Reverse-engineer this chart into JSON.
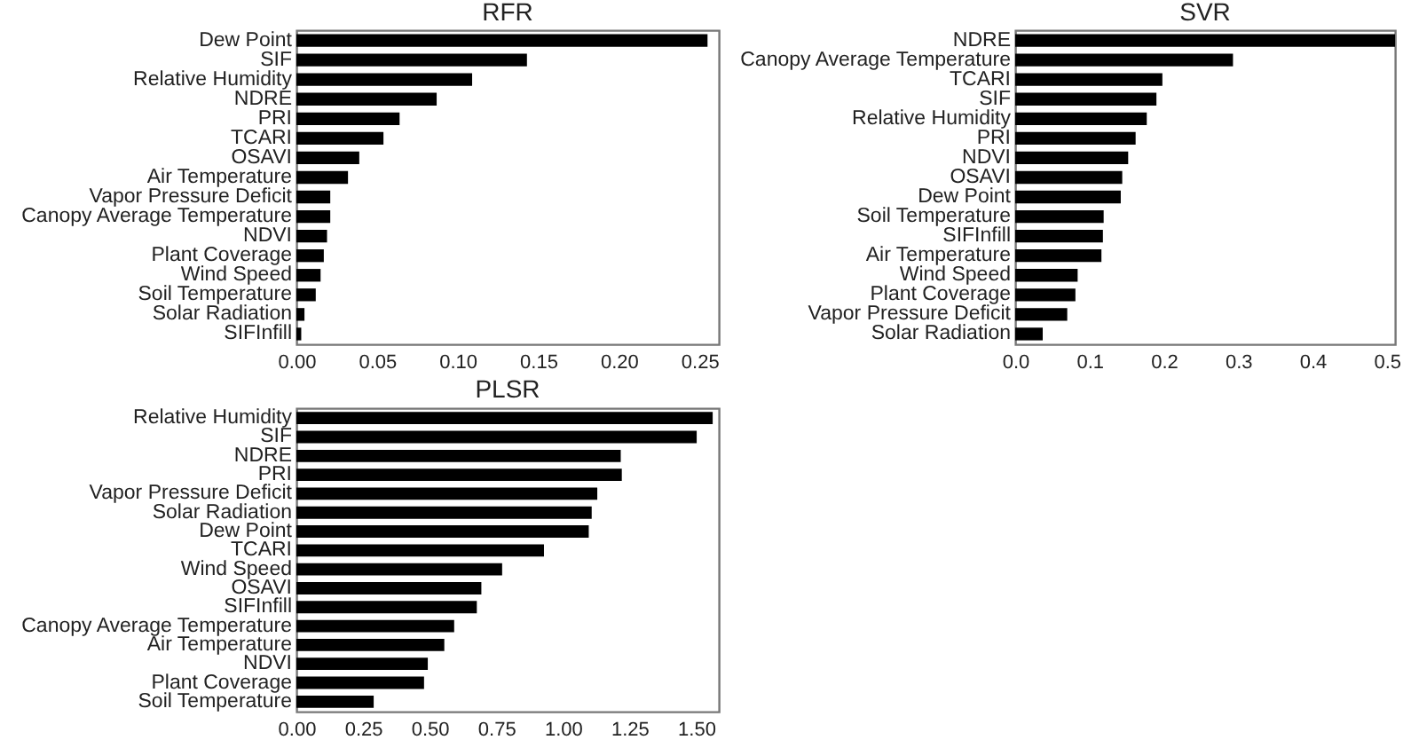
{
  "chart_data": [
    {
      "type": "bar",
      "orientation": "horizontal",
      "title": "RFR",
      "color": "#000000",
      "categories": [
        "Dew Point",
        "SIF",
        "Relative Humidity",
        "NDRE",
        "PRI",
        "TCARI",
        "OSAVI",
        "Air Temperature",
        "Vapor Pressure Deficit",
        "Canopy Average Temperature",
        "NDVI",
        "Plant Coverage",
        "Wind Speed",
        "Soil Temperature",
        "Solar Radiation",
        "SIFInfill"
      ],
      "values": [
        0.255,
        0.143,
        0.109,
        0.087,
        0.064,
        0.054,
        0.039,
        0.032,
        0.021,
        0.021,
        0.019,
        0.017,
        0.015,
        0.012,
        0.005,
        0.003
      ],
      "xlim": [
        0,
        0.262
      ],
      "xticks": [
        {
          "value": 0,
          "label": "0.00"
        },
        {
          "value": 0.05,
          "label": "0.05"
        },
        {
          "value": 0.1,
          "label": "0.10"
        },
        {
          "value": 0.15,
          "label": "0.15"
        },
        {
          "value": 0.2,
          "label": "0.20"
        },
        {
          "value": 0.25,
          "label": "0.25"
        }
      ]
    },
    {
      "type": "bar",
      "orientation": "horizontal",
      "title": "SVR",
      "color": "#000000",
      "categories": [
        "NDRE",
        "Canopy Average Temperature",
        "TCARI",
        "SIF",
        "Relative Humidity",
        "PRI",
        "NDVI",
        "OSAVI",
        "Dew Point",
        "Soil Temperature",
        "SIFInfill",
        "Air Temperature",
        "Wind Speed",
        "Plant Coverage",
        "Vapor Pressure Deficit",
        "Solar Radiation"
      ],
      "values": [
        0.511,
        0.293,
        0.198,
        0.19,
        0.177,
        0.162,
        0.152,
        0.144,
        0.142,
        0.119,
        0.118,
        0.116,
        0.084,
        0.081,
        0.07,
        0.037
      ],
      "xlim": [
        0,
        0.511
      ],
      "xticks": [
        {
          "value": 0,
          "label": "0.0"
        },
        {
          "value": 0.1,
          "label": "0.1"
        },
        {
          "value": 0.2,
          "label": "0.2"
        },
        {
          "value": 0.3,
          "label": "0.3"
        },
        {
          "value": 0.4,
          "label": "0.4"
        },
        {
          "value": 0.5,
          "label": "0.5"
        }
      ]
    },
    {
      "type": "bar",
      "orientation": "horizontal",
      "title": "PLSR",
      "color": "#000000",
      "categories": [
        "Relative Humidity",
        "SIF",
        "NDRE",
        "PRI",
        "Vapor Pressure Deficit",
        "Solar Radiation",
        "Dew Point",
        "TCARI",
        "Wind Speed",
        "OSAVI",
        "SIFInfill",
        "Canopy Average Temperature",
        "Air Temperature",
        "NDVI",
        "Plant Coverage",
        "Soil Temperature"
      ],
      "values": [
        1.562,
        1.502,
        1.217,
        1.221,
        1.129,
        1.108,
        1.097,
        0.929,
        0.772,
        0.694,
        0.677,
        0.592,
        0.555,
        0.493,
        0.479,
        0.29
      ],
      "xlim": [
        0,
        1.585
      ],
      "xticks": [
        {
          "value": 0,
          "label": "0.00"
        },
        {
          "value": 0.25,
          "label": "0.25"
        },
        {
          "value": 0.5,
          "label": "0.50"
        },
        {
          "value": 0.75,
          "label": "0.75"
        },
        {
          "value": 1,
          "label": "1.00"
        },
        {
          "value": 1.25,
          "label": "1.25"
        },
        {
          "value": 1.5,
          "label": "1.50"
        }
      ]
    }
  ]
}
